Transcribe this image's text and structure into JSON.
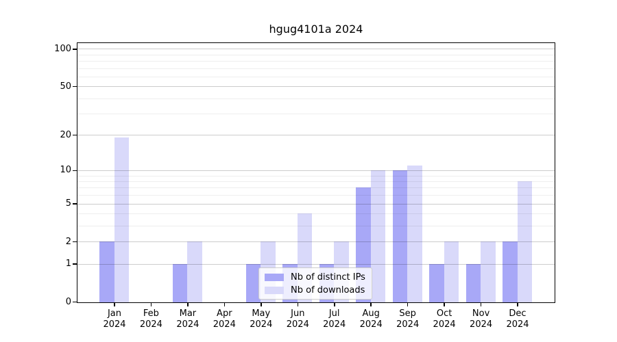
{
  "title": "hgug4101a 2024",
  "chart_data": {
    "type": "bar",
    "title": "hgug4101a 2024",
    "categories": [
      "Jan 2024",
      "Feb 2024",
      "Mar 2024",
      "Apr 2024",
      "May 2024",
      "Jun 2024",
      "Jul 2024",
      "Aug 2024",
      "Sep 2024",
      "Oct 2024",
      "Nov 2024",
      "Dec 2024"
    ],
    "months": [
      "Jan",
      "Feb",
      "Mar",
      "Apr",
      "May",
      "Jun",
      "Jul",
      "Aug",
      "Sep",
      "Oct",
      "Nov",
      "Dec"
    ],
    "year": "2024",
    "series": [
      {
        "name": "Nb of distinct IPs",
        "color": "#a8a8f7",
        "values": [
          2,
          0,
          1,
          0,
          1,
          1,
          1,
          7,
          10,
          1,
          1,
          2
        ]
      },
      {
        "name": "Nb of downloads",
        "color": "#d9d9fa",
        "values": [
          19,
          0,
          2,
          0,
          2,
          4,
          2,
          10,
          11,
          2,
          2,
          8
        ]
      }
    ],
    "xlabel": "",
    "ylabel": "",
    "yscale": "log1p",
    "ylim": [
      0,
      111
    ],
    "yticks": [
      0,
      1,
      2,
      5,
      10,
      20,
      50,
      100
    ],
    "yticks_minor": [
      3,
      4,
      6,
      7,
      8,
      9,
      30,
      40,
      60,
      70,
      80,
      90
    ],
    "grid": true,
    "legend_position": "lower center"
  },
  "colors": {
    "background": "#ffffff",
    "axis": "#000000",
    "grid_major": "rgba(0,0,0,0.20)",
    "grid_minor": "rgba(0,0,0,0.065)",
    "legend_border": "#cccccc",
    "bar_ips": "#a8a8f7",
    "bar_downloads": "#d9d9fa"
  }
}
